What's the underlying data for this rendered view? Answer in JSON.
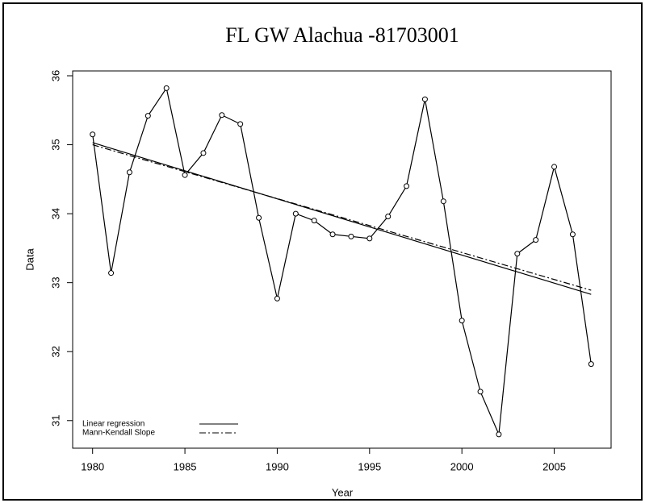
{
  "chart_data": {
    "type": "line",
    "title": "FL GW Alachua -81703001",
    "xlabel": "Year",
    "ylabel": "Data",
    "x": [
      1980,
      1981,
      1982,
      1983,
      1984,
      1985,
      1986,
      1987,
      1988,
      1989,
      1990,
      1991,
      1992,
      1993,
      1994,
      1995,
      1996,
      1997,
      1998,
      1999,
      2000,
      2001,
      2002,
      2003,
      2004,
      2005,
      2006,
      2007
    ],
    "series": [
      {
        "color": "#000000",
        "values": [
          35.15,
          33.14,
          34.6,
          35.42,
          35.82,
          34.56,
          34.88,
          35.43,
          35.3,
          33.94,
          32.77,
          34.0,
          33.9,
          33.7,
          33.67,
          33.64,
          33.96,
          34.4,
          35.66,
          34.18,
          32.45,
          31.42,
          30.8,
          33.42,
          33.62,
          34.68,
          33.7,
          31.82
        ]
      }
    ],
    "trend_lines": [
      {
        "name": "Linear regression",
        "dash": "solid",
        "color": "#000000",
        "x": [
          1980,
          2007
        ],
        "values": [
          35.03,
          32.83
        ]
      },
      {
        "name": "Mann-Kendall Slope",
        "dash": "dashdot",
        "color": "#000000",
        "x": [
          1980,
          2007
        ],
        "values": [
          35.0,
          32.89
        ]
      }
    ],
    "xlim": [
      1978.92,
      2008.08
    ],
    "ylim": [
      30.6,
      36.07
    ],
    "xticks": [
      1980,
      1985,
      1990,
      1995,
      2000,
      2005
    ],
    "yticks": [
      31,
      32,
      33,
      34,
      35,
      36
    ],
    "legend": "lower left",
    "grid": false
  }
}
